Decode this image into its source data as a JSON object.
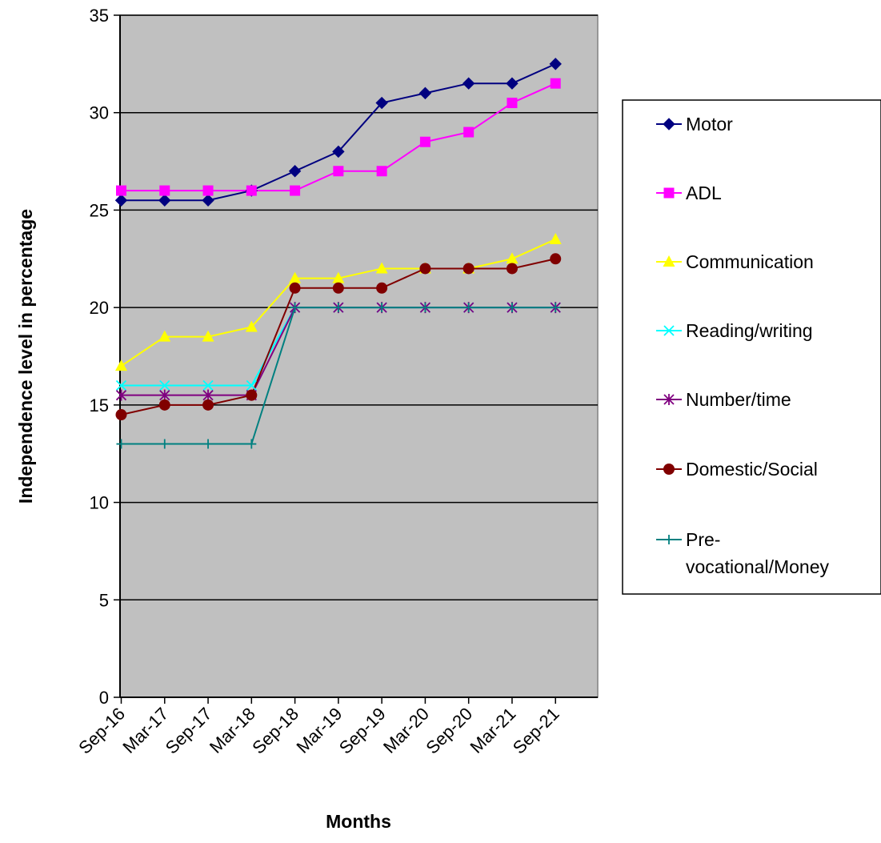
{
  "chart_data": {
    "type": "line",
    "title": "",
    "xlabel": "Months",
    "ylabel": "Independence level in percentage",
    "ylim": [
      0,
      35
    ],
    "yticks": [
      0,
      5,
      10,
      15,
      20,
      25,
      30,
      35
    ],
    "grid": "horizontal",
    "plot_background": "#c0c0c0",
    "legend_position": "right",
    "categories": [
      "Sep-16",
      "Mar-17",
      "Sep-17",
      "Mar-18",
      "Sep-18",
      "Mar-19",
      "Sep-19",
      "Mar-20",
      "Sep-20",
      "Mar-21",
      "Sep-21"
    ],
    "series": [
      {
        "name": "Motor",
        "legend_lines": [
          "Motor"
        ],
        "color": "#000080",
        "marker": "diamond",
        "values": [
          25.5,
          25.5,
          25.5,
          26,
          27,
          28,
          30.5,
          31,
          31.5,
          31.5,
          32.5
        ]
      },
      {
        "name": "ADL",
        "legend_lines": [
          "ADL"
        ],
        "color": "#ff00ff",
        "marker": "square",
        "values": [
          26,
          26,
          26,
          26,
          26,
          27,
          27,
          28.5,
          29,
          30.5,
          31.5
        ]
      },
      {
        "name": "Communication",
        "legend_lines": [
          "Communication"
        ],
        "color": "#ffff00",
        "marker": "triangle",
        "values": [
          17,
          18.5,
          18.5,
          19,
          21.5,
          21.5,
          22,
          22,
          22,
          22.5,
          23.5
        ]
      },
      {
        "name": "Reading/writing",
        "legend_lines": [
          "Reading/writing"
        ],
        "color": "#00ffff",
        "marker": "x",
        "values": [
          16,
          16,
          16,
          16,
          20,
          20,
          20,
          20,
          20,
          20,
          20
        ]
      },
      {
        "name": "Number/time",
        "legend_lines": [
          "Number/time"
        ],
        "color": "#800080",
        "marker": "star",
        "values": [
          15.5,
          15.5,
          15.5,
          15.5,
          20,
          20,
          20,
          20,
          20,
          20,
          20
        ]
      },
      {
        "name": "Domestic/Social",
        "legend_lines": [
          "Domestic/Social"
        ],
        "color": "#800000",
        "marker": "circle",
        "values": [
          14.5,
          15,
          15,
          15.5,
          21,
          21,
          21,
          22,
          22,
          22,
          22.5
        ]
      },
      {
        "name": "Pre-vocational/Money",
        "legend_lines": [
          "Pre-",
          "vocational/Money"
        ],
        "color": "#008080",
        "marker": "plus",
        "values": [
          13,
          13,
          13,
          13,
          20,
          20,
          20,
          20,
          20,
          20,
          20
        ]
      }
    ]
  }
}
